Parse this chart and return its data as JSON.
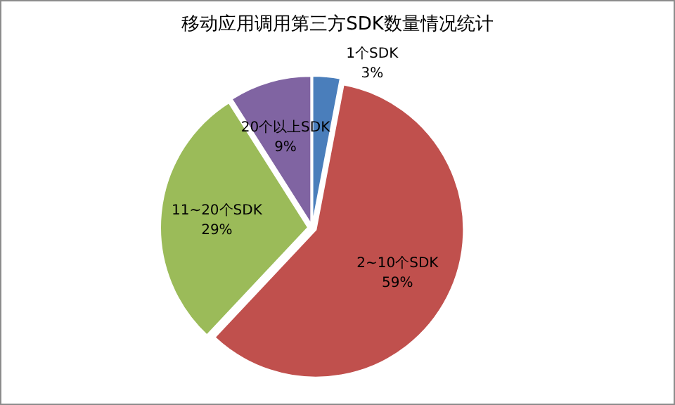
{
  "chart_data": {
    "type": "pie",
    "title": "移动应用调用第三方SDK数量情况统计",
    "categories": [
      "1个SDK",
      "2~10个SDK",
      "11~20个SDK",
      "20个以上SDK"
    ],
    "values": [
      3,
      59,
      29,
      9
    ],
    "colors": [
      "#4a7ebb",
      "#c0504d",
      "#9bbb59",
      "#8064a2"
    ],
    "value_labels": [
      "3%",
      "59%",
      "29%",
      "9%"
    ],
    "legend": false
  }
}
